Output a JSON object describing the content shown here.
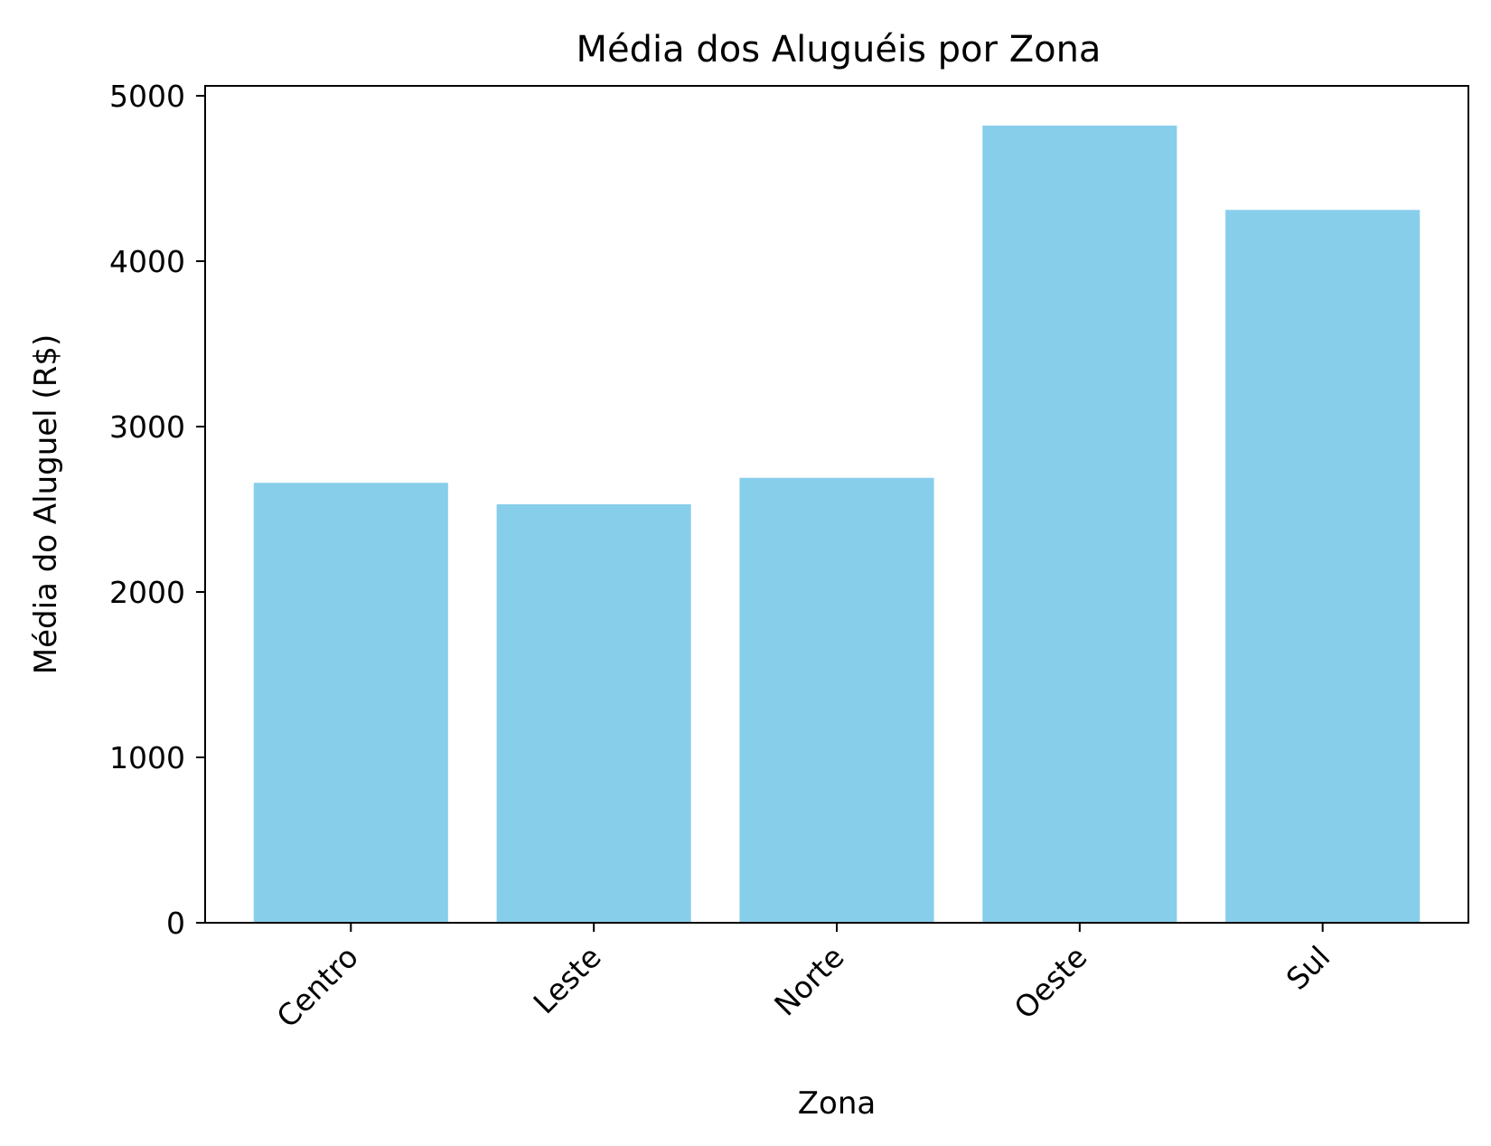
{
  "chart_data": {
    "type": "bar",
    "title": "Média dos Aluguéis por Zona",
    "xlabel": "Zona",
    "ylabel": "Média do Aluguel (R$)",
    "categories": [
      "Centro",
      "Leste",
      "Norte",
      "Oeste",
      "Sul"
    ],
    "values": [
      2660,
      2530,
      2690,
      4820,
      4310
    ],
    "ylim": [
      0,
      5060
    ],
    "yticks": [
      0,
      1000,
      2000,
      3000,
      4000,
      5000
    ],
    "grid": false,
    "legend": "none",
    "bar_color": "#87CEEB",
    "tick_label_rotation": 45
  }
}
